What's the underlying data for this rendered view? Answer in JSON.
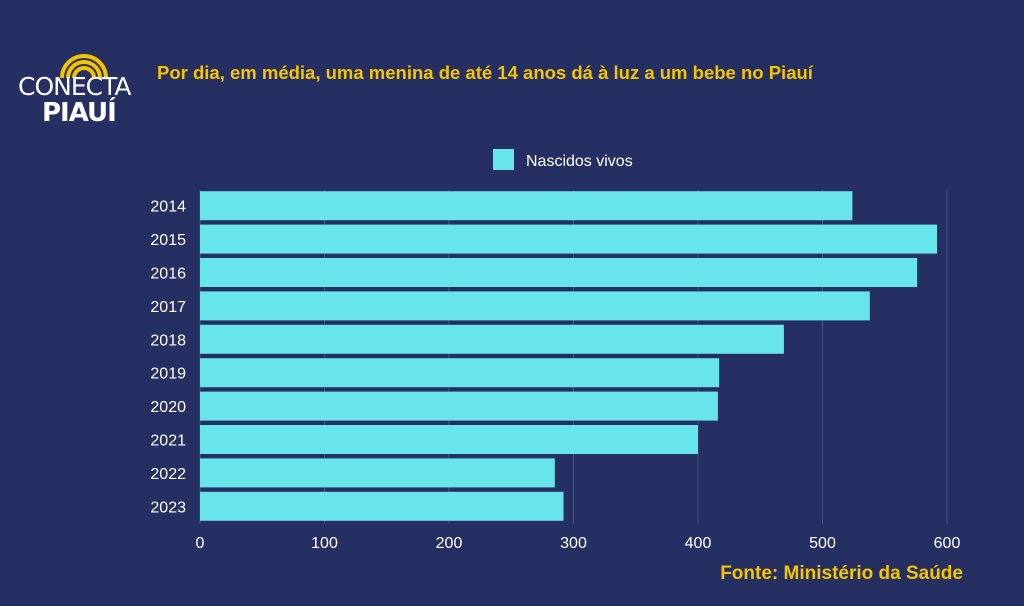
{
  "logo": {
    "word1": "CONECTA",
    "word2": "PIAUÍ"
  },
  "title": "Por dia, em média, uma menina de até 14 anos dá à luz a um bebe no Piauí",
  "source": "Fonte: Ministério da Saúde",
  "colors": {
    "background": "#262f62",
    "bar": "#67e5ea",
    "title": "#f5c400",
    "grid": "#4a5283"
  },
  "chart_data": {
    "type": "bar",
    "orientation": "horizontal",
    "categories": [
      "2014",
      "2015",
      "2016",
      "2017",
      "2018",
      "2019",
      "2020",
      "2021",
      "2022",
      "2023"
    ],
    "series": [
      {
        "name": "Nascidos vivos",
        "values": [
          524,
          592,
          576,
          538,
          469,
          417,
          416,
          400,
          285,
          292
        ]
      }
    ],
    "xlim": [
      0,
      600
    ],
    "xticks": [
      0,
      100,
      200,
      300,
      400,
      500,
      600
    ],
    "legend": "top-center",
    "grid": true
  }
}
